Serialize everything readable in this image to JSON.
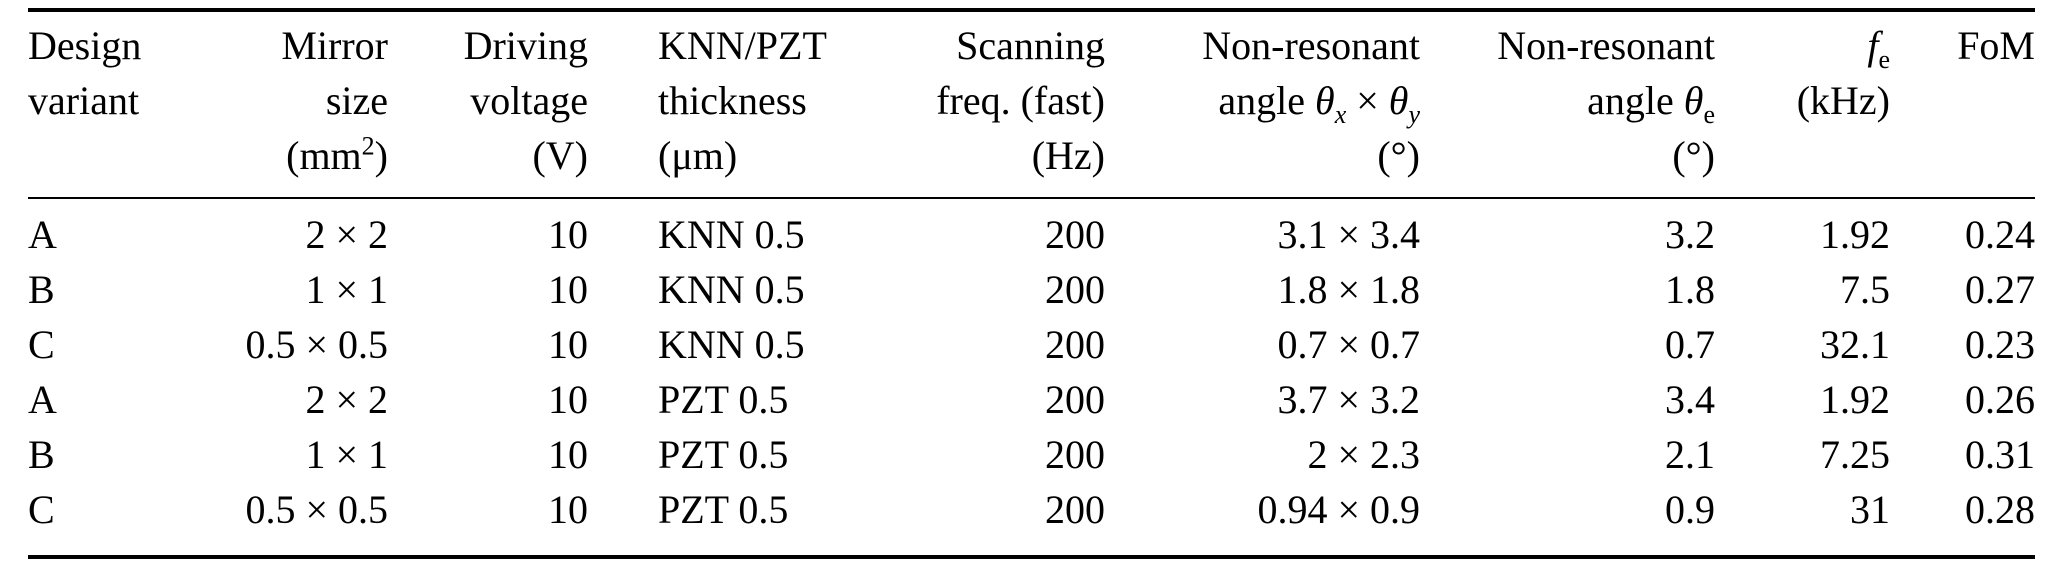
{
  "page": {
    "background_color": "#ffffff",
    "text_color": "#000000",
    "rule_color": "#000000"
  },
  "table": {
    "columns": [
      {
        "id": "design-variant",
        "align": "left",
        "header": [
          [
            {
              "t": "Design"
            }
          ],
          [
            {
              "t": "variant"
            }
          ]
        ]
      },
      {
        "id": "mirror-size",
        "align": "right",
        "header": [
          [
            {
              "t": "Mirror"
            }
          ],
          [
            {
              "t": "size"
            }
          ],
          [
            {
              "t": "(mm"
            },
            {
              "t": "2",
              "s": "sup"
            },
            {
              "t": ")"
            }
          ]
        ]
      },
      {
        "id": "driving-voltage",
        "align": "right",
        "header": [
          [
            {
              "t": "Driving"
            }
          ],
          [
            {
              "t": "voltage"
            }
          ],
          [
            {
              "t": "(V)"
            }
          ]
        ]
      },
      {
        "id": "knn-pzt-thickness",
        "align": "left",
        "header": [
          [
            {
              "t": "KNN/PZT"
            }
          ],
          [
            {
              "t": "thickness"
            }
          ],
          [
            {
              "t": "(μm)"
            }
          ]
        ]
      },
      {
        "id": "scanning-freq",
        "align": "right",
        "header": [
          [
            {
              "t": "Scanning"
            }
          ],
          [
            {
              "t": "freq. (fast)"
            }
          ],
          [
            {
              "t": "(Hz)"
            }
          ]
        ]
      },
      {
        "id": "non-resonant-angle-xy",
        "align": "right",
        "header": [
          [
            {
              "t": "Non-resonant"
            }
          ],
          [
            {
              "t": "angle "
            },
            {
              "t": "θ",
              "i": true
            },
            {
              "t": "x",
              "s": "sub",
              "i": true
            },
            {
              "t": " × "
            },
            {
              "t": "θ",
              "i": true
            },
            {
              "t": "y",
              "s": "sub",
              "i": true
            }
          ],
          [
            {
              "t": "(°)"
            }
          ]
        ]
      },
      {
        "id": "non-resonant-angle-e",
        "align": "right",
        "header": [
          [
            {
              "t": "Non-resonant"
            }
          ],
          [
            {
              "t": "angle "
            },
            {
              "t": "θ",
              "i": true
            },
            {
              "t": "e",
              "s": "sub"
            }
          ],
          [
            {
              "t": "(°)"
            }
          ]
        ]
      },
      {
        "id": "fe-khz",
        "align": "right",
        "header": [
          [
            {
              "t": "f",
              "i": true
            },
            {
              "t": "e",
              "s": "sub"
            }
          ],
          [
            {
              "t": "(kHz)"
            }
          ]
        ]
      },
      {
        "id": "fom",
        "align": "right",
        "header": [
          [
            {
              "t": "FoM"
            }
          ]
        ]
      }
    ],
    "rows": [
      [
        "A",
        "2 × 2",
        "10",
        "KNN 0.5",
        "200",
        "3.1 × 3.4",
        "3.2",
        "1.92",
        "0.24"
      ],
      [
        "B",
        "1 × 1",
        "10",
        "KNN 0.5",
        "200",
        "1.8 × 1.8",
        "1.8",
        "7.5",
        "0.27"
      ],
      [
        "C",
        "0.5 × 0.5",
        "10",
        "KNN 0.5",
        "200",
        "0.7 × 0.7",
        "0.7",
        "32.1",
        "0.23"
      ],
      [
        "A",
        "2 × 2",
        "10",
        "PZT 0.5",
        "200",
        "3.7 × 3.2",
        "3.4",
        "1.92",
        "0.26"
      ],
      [
        "B",
        "1 × 1",
        "10",
        "PZT 0.5",
        "200",
        "2 × 2.3",
        "2.1",
        "7.25",
        "0.31"
      ],
      [
        "C",
        "0.5 × 0.5",
        "10",
        "PZT 0.5",
        "200",
        "0.94 × 0.9",
        "0.9",
        "31",
        "0.28"
      ]
    ]
  }
}
